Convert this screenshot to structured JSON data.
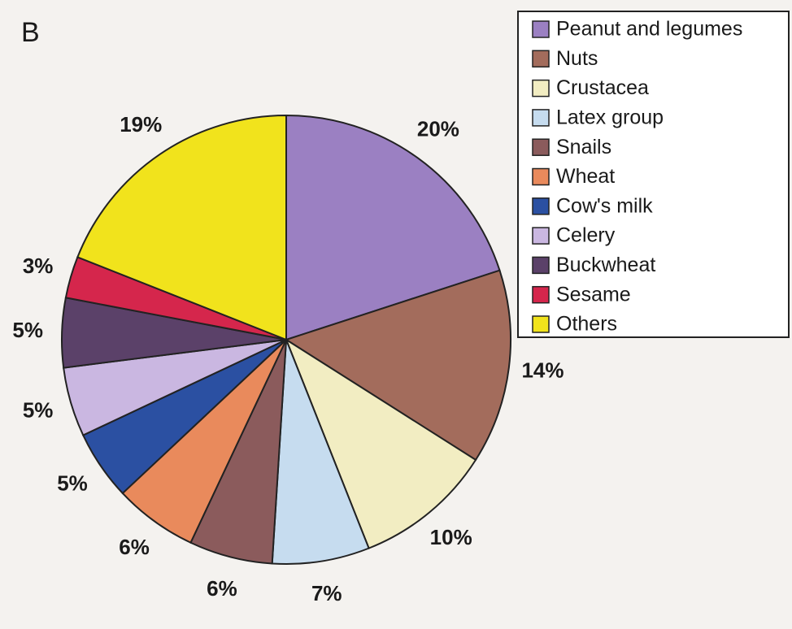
{
  "chart_data": {
    "type": "pie",
    "label": "B",
    "categories": [
      "Peanut and legumes",
      "Nuts",
      "Crustacea",
      "Latex group",
      "Snails",
      "Wheat",
      "Cow's milk",
      "Celery",
      "Buckwheat",
      "Sesame",
      "Others"
    ],
    "values": [
      20,
      14,
      10,
      7,
      6,
      6,
      5,
      5,
      5,
      3,
      19
    ],
    "value_labels": [
      "20%",
      "14%",
      "10%",
      "7%",
      "6%",
      "6%",
      "5%",
      "5%",
      "5%",
      "3%",
      "19%"
    ],
    "colors": [
      "#9b80c2",
      "#a36c5c",
      "#f2edc2",
      "#c6dcef",
      "#8b5b5c",
      "#e98a5c",
      "#2b50a2",
      "#cab7e1",
      "#5b4169",
      "#d5264c",
      "#f1e31c"
    ],
    "legend": "top-right"
  }
}
